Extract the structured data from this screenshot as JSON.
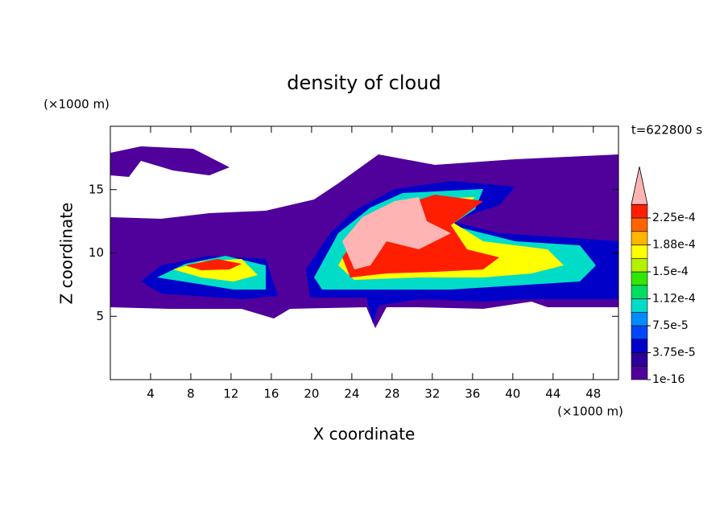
{
  "chart_data": {
    "type": "contour",
    "title": "density of cloud",
    "xlabel": "X coordinate",
    "ylabel": "Z coordinate",
    "x_unit": "(×1000 m)",
    "y_unit": "(×1000 m)",
    "annotation": "t=622800 s",
    "xlim": [
      0,
      50.5
    ],
    "xticks": [
      4,
      8,
      12,
      16,
      20,
      24,
      28,
      32,
      36,
      40,
      44,
      48
    ],
    "ylim": [
      0,
      20
    ],
    "yticks": [
      5,
      10,
      15
    ],
    "levels": [
      {
        "value": 1e-16,
        "label": "1e-16"
      },
      {
        "value": 3.75e-05,
        "label": "3.75e-5"
      },
      {
        "value": 7.5e-05,
        "label": "7.5e-5"
      },
      {
        "value": 0.000112,
        "label": "1.12e-4"
      },
      {
        "value": 0.00015,
        "label": "1.5e-4"
      },
      {
        "value": 0.000188,
        "label": "1.88e-4"
      },
      {
        "value": 0.000225,
        "label": "2.25e-4"
      }
    ],
    "colors": [
      "#50009b",
      "#2d0096",
      "#0000c8",
      "#0046ff",
      "#008cff",
      "#00dcc8",
      "#00dc64",
      "#32e600",
      "#b4f000",
      "#ffff00",
      "#ffb400",
      "#ff6400",
      "#ff1e00"
    ],
    "over_color": "#ffb4b4"
  }
}
